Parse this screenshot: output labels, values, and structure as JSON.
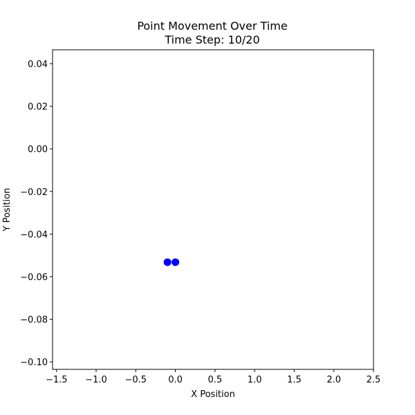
{
  "chart_data": {
    "type": "scatter",
    "title": "Point Movement Over Time",
    "subtitle": "Time Step: 10/20",
    "xlabel": "X Position",
    "ylabel": "Y Position",
    "xlim": [
      -1.55,
      2.5
    ],
    "ylim": [
      -0.1035,
      0.0465
    ],
    "x_ticks": [
      -1.5,
      -1.0,
      -0.5,
      0.0,
      0.5,
      1.0,
      1.5,
      2.0,
      2.5
    ],
    "x_tick_labels": [
      "−1.5",
      "−1.0",
      "−0.5",
      "0.0",
      "0.5",
      "1.0",
      "1.5",
      "2.0",
      "2.5"
    ],
    "y_ticks": [
      0.04,
      0.02,
      0.0,
      -0.02,
      -0.04,
      -0.06,
      -0.08,
      -0.1
    ],
    "y_tick_labels": [
      "0.04",
      "0.02",
      "0.00",
      "−0.02",
      "−0.04",
      "−0.06",
      "−0.08",
      "−0.10"
    ],
    "grid": false,
    "points": [
      {
        "x": -0.1,
        "y": -0.0532
      },
      {
        "x": 0.0,
        "y": -0.0532
      }
    ],
    "point_color": "#0000ff"
  }
}
